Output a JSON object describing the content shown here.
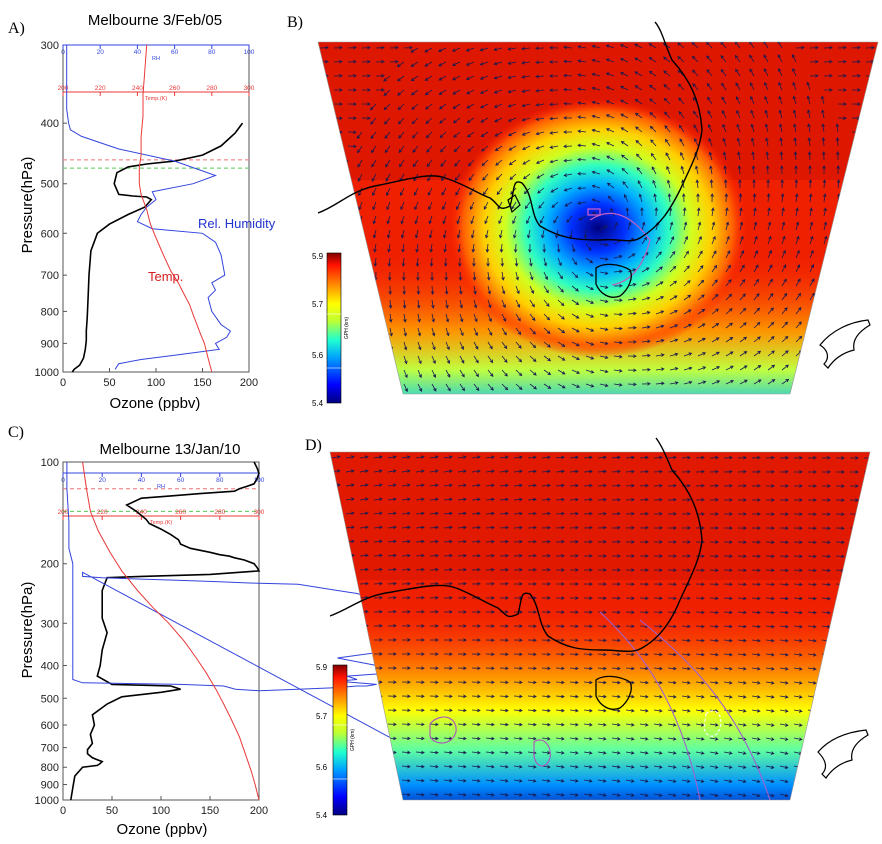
{
  "panels": {
    "a": {
      "letter": "A)",
      "title": "Melbourne 3/Feb/05"
    },
    "b": {
      "letter": "B)"
    },
    "c": {
      "letter": "C)",
      "title": "Melbourne 13/Jan/10"
    },
    "d": {
      "letter": "D)"
    }
  },
  "chart_data": [
    {
      "type": "line",
      "panel": "A",
      "title": "Melbourne 3/Feb/05",
      "xlabel": "Ozone (ppbv)",
      "ylabel": "Pressure(hPa)",
      "y_scale": "log",
      "y_reversed": true,
      "xlim": [
        0,
        200
      ],
      "ylim": [
        1000,
        300
      ],
      "x_ticks": [
        "0",
        "50",
        "100",
        "150",
        "200"
      ],
      "y_ticks": [
        "300",
        "400",
        "500",
        "600",
        "700",
        "800",
        "900",
        "1000"
      ],
      "top_axes": [
        {
          "label": "RH",
          "ticks": [
            "0",
            "20",
            "40",
            "60",
            "80",
            "100"
          ],
          "color": "#3344dd"
        },
        {
          "label": "Temp.(K)",
          "ticks": [
            "200",
            "220",
            "240",
            "260",
            "280",
            "300"
          ],
          "color": "#e83838"
        }
      ],
      "annotations": [
        {
          "text": "Rel. Humidity",
          "color": "#2233cc"
        },
        {
          "text": "Temp.",
          "color": "#d42020"
        }
      ],
      "reference_lines": [
        {
          "pressure": 458,
          "color": "#f07070",
          "style": "dashed"
        },
        {
          "pressure": 472,
          "color": "#55cc55",
          "style": "dashed"
        }
      ],
      "series": [
        {
          "name": "Ozone",
          "color": "#000000",
          "x": [
            193,
            185,
            170,
            150,
            120,
            90,
            70,
            58,
            55,
            60,
            75,
            90,
            95,
            88,
            70,
            50,
            37,
            30,
            28,
            27,
            26,
            25,
            25,
            24,
            22,
            18,
            12,
            10
          ],
          "y": [
            400,
            415,
            435,
            450,
            460,
            465,
            470,
            480,
            500,
            520,
            523,
            525,
            530,
            545,
            560,
            580,
            600,
            640,
            700,
            760,
            820,
            860,
            890,
            920,
            950,
            975,
            990,
            1000
          ]
        },
        {
          "name": "Rel. Humidity",
          "color": "#3344dd",
          "x": [
            2,
            2,
            2,
            2,
            3,
            4,
            10,
            30,
            60,
            82,
            70,
            48,
            50,
            45,
            42,
            40,
            48,
            75,
            82,
            85,
            87,
            80,
            82,
            78,
            80,
            85,
            90,
            88,
            82,
            84,
            60,
            42,
            30,
            28
          ],
          "y": [
            300,
            320,
            350,
            380,
            400,
            410,
            420,
            440,
            460,
            485,
            500,
            515,
            530,
            545,
            560,
            575,
            590,
            600,
            620,
            650,
            700,
            720,
            740,
            760,
            800,
            840,
            860,
            880,
            900,
            920,
            940,
            955,
            970,
            990
          ]
        },
        {
          "name": "Temp.",
          "color": "#e83838",
          "x": [
            245,
            244,
            243,
            243,
            242,
            242,
            241,
            241,
            242,
            245,
            247,
            249,
            252,
            255,
            258,
            262,
            265,
            268,
            270,
            272,
            274,
            276,
            278,
            280
          ],
          "y": [
            300,
            330,
            360,
            390,
            420,
            450,
            470,
            500,
            520,
            550,
            580,
            600,
            630,
            660,
            690,
            720,
            750,
            780,
            810,
            840,
            870,
            900,
            950,
            1000
          ]
        }
      ]
    },
    {
      "type": "heatmap",
      "panel": "B",
      "colorbar_label": "GPH (km)",
      "colorbar_ticks": [
        "5.4",
        "5.6",
        "5.7",
        "5.9"
      ],
      "colorbar_range": [
        5.4,
        5.9
      ],
      "low_center_value": 5.4,
      "background_value": 5.9,
      "overlay": "wind vectors"
    },
    {
      "type": "line",
      "panel": "C",
      "title": "Melbourne 13/Jan/10",
      "xlabel": "Ozone (ppbv)",
      "ylabel": "Pressure(hPa)",
      "y_scale": "log",
      "y_reversed": true,
      "xlim": [
        0,
        200
      ],
      "ylim": [
        1000,
        100
      ],
      "x_ticks": [
        "0",
        "50",
        "100",
        "150",
        "200"
      ],
      "y_ticks": [
        "100",
        "200",
        "300",
        "400",
        "500",
        "600",
        "700",
        "800",
        "900",
        "1000"
      ],
      "top_axes": [
        {
          "label": "RH",
          "ticks": [
            "0",
            "20",
            "40",
            "60",
            "80",
            "100"
          ],
          "color": "#3344dd"
        },
        {
          "label": "Temp.(K)",
          "ticks": [
            "200",
            "220",
            "240",
            "260",
            "280",
            "300"
          ],
          "color": "#e83838"
        }
      ],
      "reference_lines": [
        {
          "pressure": 120,
          "color": "#f07070",
          "style": "dashed"
        },
        {
          "pressure": 140,
          "color": "#55cc55",
          "style": "dashed"
        }
      ],
      "series": [
        {
          "name": "Ozone",
          "color": "#000000",
          "x": [
            195,
            198,
            200,
            198,
            195,
            188,
            180,
            175,
            140,
            110,
            80,
            65,
            75,
            85,
            88,
            100,
            110,
            118,
            120,
            130,
            150,
            160,
            170,
            175,
            185,
            195,
            198,
            200,
            150,
            80,
            45,
            40,
            40,
            40,
            45,
            40,
            38,
            35,
            50,
            110,
            120,
            100,
            60,
            45,
            30,
            32,
            28,
            30,
            25,
            25,
            30,
            35,
            40,
            38,
            35,
            20,
            12,
            10,
            8
          ],
          "y": [
            100,
            104,
            108,
            112,
            116,
            118,
            120,
            122,
            124,
            126,
            128,
            134,
            140,
            148,
            152,
            158,
            164,
            170,
            175,
            180,
            185,
            188,
            190,
            192,
            195,
            200,
            205,
            210,
            215,
            218,
            220,
            240,
            260,
            290,
            320,
            360,
            400,
            430,
            455,
            460,
            470,
            480,
            495,
            520,
            560,
            600,
            640,
            680,
            710,
            730,
            750,
            760,
            770,
            780,
            790,
            800,
            850,
            920,
            1000
          ]
        },
        {
          "name": "Rel. Humidity",
          "color": "#3344dd",
          "x": [
            2,
            2,
            3,
            3,
            5,
            5,
            5,
            5,
            5,
            5,
            5,
            5,
            5,
            5,
            5,
            5,
            5,
            10,
            60,
            82,
            85,
            88,
            100,
            120,
            140,
            150,
            155,
            160,
            150,
            140,
            150,
            145,
            170,
            160,
            140,
            170,
            190,
            195,
            195,
            190,
            190,
            185,
            180,
            175,
            170,
            165,
            160,
            155,
            150,
            140,
            130,
            120,
            95,
            80,
            60,
            40,
            20,
            10,
            10,
            10,
            10,
            195,
            198,
            200,
            197,
            195
          ],
          "y": [
            100,
            120,
            150,
            180,
            200,
            230,
            260,
            280,
            290,
            300,
            320,
            340,
            360,
            380,
            400,
            420,
            440,
            450,
            455,
            460,
            465,
            470,
            475,
            470,
            465,
            460,
            460,
            455,
            450,
            445,
            440,
            430,
            420,
            400,
            380,
            360,
            350,
            345,
            340,
            330,
            320,
            310,
            300,
            290,
            280,
            270,
            260,
            250,
            245,
            240,
            235,
            230,
            228,
            226,
            224,
            222,
            220,
            218,
            216,
            214,
            212,
            800,
            850,
            900,
            950,
            1000
          ]
        },
        {
          "name": "Temp.",
          "color": "#e83838",
          "x": [
            210,
            212,
            214,
            218,
            224,
            230,
            238,
            246,
            254,
            262,
            268,
            273,
            278,
            282,
            286,
            290,
            293,
            296,
            298,
            300
          ],
          "y": [
            100,
            120,
            140,
            160,
            185,
            210,
            240,
            270,
            300,
            340,
            380,
            420,
            470,
            520,
            580,
            650,
            730,
            820,
            900,
            1000
          ]
        }
      ]
    },
    {
      "type": "heatmap",
      "panel": "D",
      "colorbar_label": "GPH (km)",
      "colorbar_ticks": [
        "5.4",
        "5.6",
        "5.7",
        "5.9"
      ],
      "colorbar_range": [
        5.4,
        5.9
      ],
      "low_center_value": 5.45,
      "background_value": 5.9,
      "overlay": "wind vectors"
    }
  ]
}
